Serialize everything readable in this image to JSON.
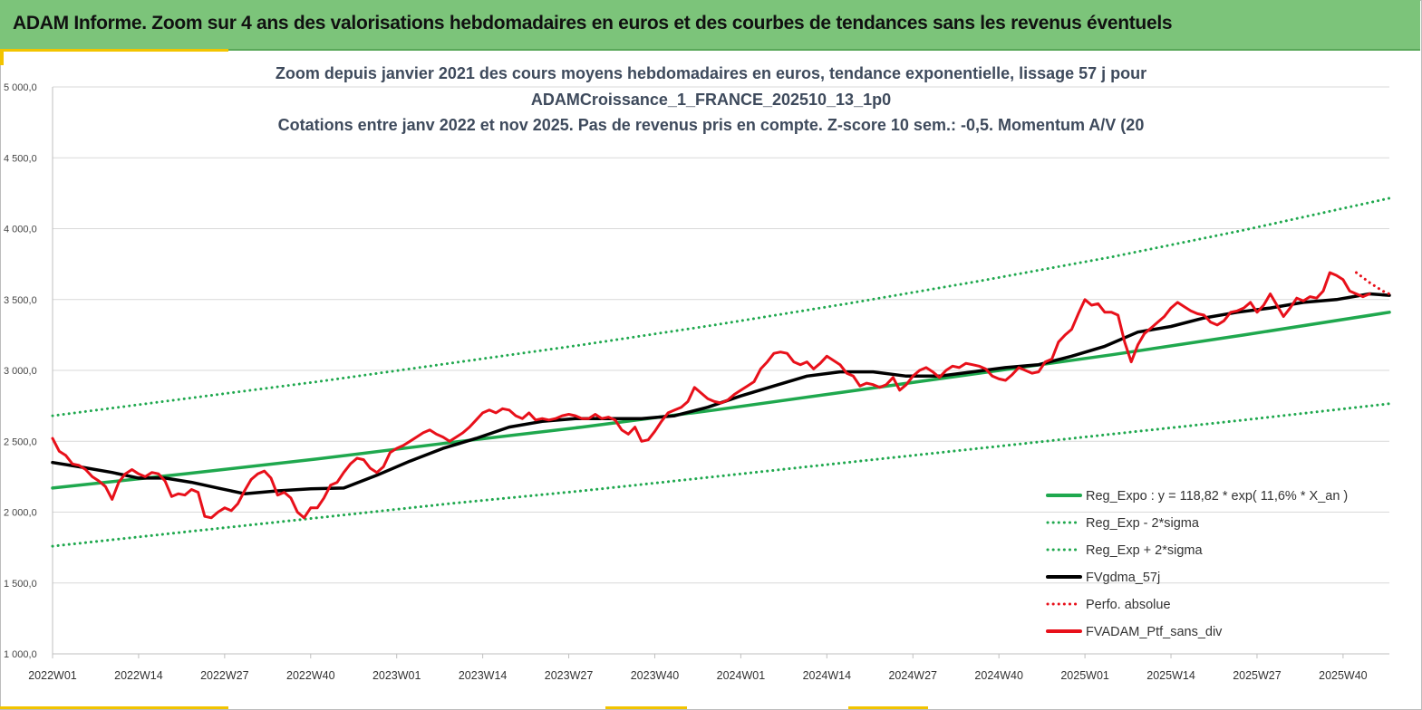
{
  "header": {
    "title": "ADAM Informe. Zoom sur 4 ans des valorisations hebdomadaires en euros et des courbes de tendances sans les revenus éventuels"
  },
  "chart_data": {
    "type": "line",
    "title_lines": [
      "Zoom depuis janvier 2021 des cours moyens hebdomadaires  en euros, tendance exponentielle, lissage 57 j pour",
      "ADAMCroissance_1_FRANCE_202510_13_1p0",
      "Cotations  entre janv 2022 et nov 2025. Pas de revenus pris en compte. Z-score 10 sem.: -0,5. Momentum A/V (20"
    ],
    "ylim": [
      1000,
      5000
    ],
    "yticks": [
      "1 000,0",
      "1 500,0",
      "2 000,0",
      "2 500,0",
      "3 000,0",
      "3 500,0",
      "4 000,0",
      "4 500,0",
      "5 000,0"
    ],
    "ytick_values": [
      1000,
      1500,
      2000,
      2500,
      3000,
      3500,
      4000,
      4500,
      5000
    ],
    "xlim": [
      1,
      203
    ],
    "xticks": [
      "2022W01",
      "2022W14",
      "2022W27",
      "2022W40",
      "2023W01",
      "2023W14",
      "2023W27",
      "2023W40",
      "2024W01",
      "2024W14",
      "2024W27",
      "2024W40",
      "2025W01",
      "2025W14",
      "2025W27",
      "2025W40"
    ],
    "xtick_index": [
      1,
      14,
      27,
      40,
      53,
      66,
      79,
      92,
      105,
      118,
      131,
      144,
      157,
      170,
      183,
      196
    ],
    "grid": "horizontal",
    "legend_position": "bottom-right",
    "colors": {
      "green": "#1fa84e",
      "black": "#000000",
      "red": "#e8101a"
    },
    "series": [
      {
        "name": "Reg_Expo : y = 118,82 * exp( 11,6% *  X_an )",
        "style": "solid",
        "color": "#1fa84e",
        "points": [
          [
            1,
            2170
          ],
          [
            21,
            2270
          ],
          [
            41,
            2375
          ],
          [
            61,
            2490
          ],
          [
            81,
            2600
          ],
          [
            101,
            2720
          ],
          [
            121,
            2850
          ],
          [
            141,
            2980
          ],
          [
            161,
            3110
          ],
          [
            181,
            3250
          ],
          [
            203,
            3410
          ]
        ]
      },
      {
        "name": "Reg_Exp - 2*sigma",
        "style": "dotted",
        "color": "#1fa84e",
        "points": [
          [
            1,
            1760
          ],
          [
            21,
            1860
          ],
          [
            41,
            1960
          ],
          [
            61,
            2060
          ],
          [
            81,
            2150
          ],
          [
            101,
            2250
          ],
          [
            121,
            2350
          ],
          [
            141,
            2450
          ],
          [
            161,
            2550
          ],
          [
            181,
            2650
          ],
          [
            203,
            2765
          ]
        ]
      },
      {
        "name": "Reg_Exp + 2*sigma",
        "style": "dotted",
        "color": "#1fa84e",
        "points": [
          [
            1,
            2680
          ],
          [
            21,
            2800
          ],
          [
            41,
            2920
          ],
          [
            61,
            3050
          ],
          [
            81,
            3180
          ],
          [
            101,
            3320
          ],
          [
            121,
            3470
          ],
          [
            141,
            3630
          ],
          [
            161,
            3800
          ],
          [
            181,
            3990
          ],
          [
            203,
            4215
          ]
        ]
      },
      {
        "name": "FVgdma_57j",
        "style": "solid",
        "color": "#000000",
        "points": [
          [
            1,
            2350
          ],
          [
            5,
            2320
          ],
          [
            10,
            2280
          ],
          [
            14,
            2240
          ],
          [
            18,
            2240
          ],
          [
            22,
            2210
          ],
          [
            26,
            2170
          ],
          [
            30,
            2130
          ],
          [
            35,
            2150
          ],
          [
            40,
            2165
          ],
          [
            45,
            2170
          ],
          [
            50,
            2260
          ],
          [
            55,
            2360
          ],
          [
            60,
            2450
          ],
          [
            65,
            2520
          ],
          [
            70,
            2600
          ],
          [
            75,
            2640
          ],
          [
            80,
            2660
          ],
          [
            85,
            2660
          ],
          [
            90,
            2660
          ],
          [
            95,
            2680
          ],
          [
            100,
            2740
          ],
          [
            105,
            2820
          ],
          [
            110,
            2890
          ],
          [
            115,
            2960
          ],
          [
            120,
            2990
          ],
          [
            125,
            2990
          ],
          [
            130,
            2960
          ],
          [
            135,
            2960
          ],
          [
            140,
            2990
          ],
          [
            145,
            3020
          ],
          [
            150,
            3040
          ],
          [
            155,
            3100
          ],
          [
            160,
            3170
          ],
          [
            165,
            3270
          ],
          [
            170,
            3310
          ],
          [
            175,
            3370
          ],
          [
            180,
            3410
          ],
          [
            185,
            3440
          ],
          [
            190,
            3480
          ],
          [
            195,
            3500
          ],
          [
            200,
            3540
          ],
          [
            203,
            3530
          ]
        ]
      },
      {
        "name": "Perfo. absolue",
        "style": "dotted",
        "color": "#e8101a",
        "points": [
          [
            198,
            3690
          ],
          [
            200,
            3620
          ],
          [
            202,
            3560
          ],
          [
            203,
            3540
          ]
        ]
      },
      {
        "name": "FVADAM_Ptf_sans_div",
        "style": "solid",
        "color": "#e8101a",
        "points": [
          [
            1,
            2520
          ],
          [
            2,
            2430
          ],
          [
            3,
            2400
          ],
          [
            4,
            2340
          ],
          [
            5,
            2330
          ],
          [
            6,
            2300
          ],
          [
            7,
            2250
          ],
          [
            8,
            2220
          ],
          [
            9,
            2180
          ],
          [
            10,
            2090
          ],
          [
            11,
            2210
          ],
          [
            12,
            2270
          ],
          [
            13,
            2300
          ],
          [
            14,
            2270
          ],
          [
            15,
            2250
          ],
          [
            16,
            2280
          ],
          [
            17,
            2270
          ],
          [
            18,
            2220
          ],
          [
            19,
            2110
          ],
          [
            20,
            2130
          ],
          [
            21,
            2120
          ],
          [
            22,
            2160
          ],
          [
            23,
            2140
          ],
          [
            24,
            1970
          ],
          [
            25,
            1960
          ],
          [
            26,
            2000
          ],
          [
            27,
            2030
          ],
          [
            28,
            2010
          ],
          [
            29,
            2060
          ],
          [
            30,
            2150
          ],
          [
            31,
            2230
          ],
          [
            32,
            2270
          ],
          [
            33,
            2290
          ],
          [
            34,
            2240
          ],
          [
            35,
            2120
          ],
          [
            36,
            2140
          ],
          [
            37,
            2100
          ],
          [
            38,
            2000
          ],
          [
            39,
            1960
          ],
          [
            40,
            2030
          ],
          [
            41,
            2030
          ],
          [
            42,
            2100
          ],
          [
            43,
            2190
          ],
          [
            44,
            2210
          ],
          [
            45,
            2280
          ],
          [
            46,
            2340
          ],
          [
            47,
            2380
          ],
          [
            48,
            2370
          ],
          [
            49,
            2310
          ],
          [
            50,
            2280
          ],
          [
            51,
            2320
          ],
          [
            52,
            2420
          ],
          [
            53,
            2450
          ],
          [
            54,
            2470
          ],
          [
            55,
            2500
          ],
          [
            56,
            2530
          ],
          [
            57,
            2560
          ],
          [
            58,
            2580
          ],
          [
            59,
            2550
          ],
          [
            60,
            2530
          ],
          [
            61,
            2500
          ],
          [
            62,
            2530
          ],
          [
            63,
            2560
          ],
          [
            64,
            2600
          ],
          [
            65,
            2650
          ],
          [
            66,
            2700
          ],
          [
            67,
            2720
          ],
          [
            68,
            2700
          ],
          [
            69,
            2730
          ],
          [
            70,
            2720
          ],
          [
            71,
            2680
          ],
          [
            72,
            2660
          ],
          [
            73,
            2700
          ],
          [
            74,
            2650
          ],
          [
            75,
            2660
          ],
          [
            76,
            2650
          ],
          [
            77,
            2660
          ],
          [
            78,
            2680
          ],
          [
            79,
            2690
          ],
          [
            80,
            2680
          ],
          [
            81,
            2660
          ],
          [
            82,
            2660
          ],
          [
            83,
            2690
          ],
          [
            84,
            2660
          ],
          [
            85,
            2670
          ],
          [
            86,
            2650
          ],
          [
            87,
            2580
          ],
          [
            88,
            2550
          ],
          [
            89,
            2600
          ],
          [
            90,
            2500
          ],
          [
            91,
            2510
          ],
          [
            92,
            2570
          ],
          [
            93,
            2640
          ],
          [
            94,
            2700
          ],
          [
            95,
            2720
          ],
          [
            96,
            2740
          ],
          [
            97,
            2780
          ],
          [
            98,
            2880
          ],
          [
            99,
            2840
          ],
          [
            100,
            2800
          ],
          [
            101,
            2780
          ],
          [
            102,
            2770
          ],
          [
            103,
            2790
          ],
          [
            104,
            2830
          ],
          [
            105,
            2860
          ],
          [
            106,
            2890
          ],
          [
            107,
            2920
          ],
          [
            108,
            3010
          ],
          [
            109,
            3060
          ],
          [
            110,
            3120
          ],
          [
            111,
            3130
          ],
          [
            112,
            3120
          ],
          [
            113,
            3060
          ],
          [
            114,
            3040
          ],
          [
            115,
            3060
          ],
          [
            116,
            3010
          ],
          [
            117,
            3050
          ],
          [
            118,
            3100
          ],
          [
            119,
            3070
          ],
          [
            120,
            3040
          ],
          [
            121,
            2980
          ],
          [
            122,
            2960
          ],
          [
            123,
            2890
          ],
          [
            124,
            2910
          ],
          [
            125,
            2900
          ],
          [
            126,
            2880
          ],
          [
            127,
            2900
          ],
          [
            128,
            2950
          ],
          [
            129,
            2860
          ],
          [
            130,
            2900
          ],
          [
            131,
            2960
          ],
          [
            132,
            3000
          ],
          [
            133,
            3020
          ],
          [
            134,
            2990
          ],
          [
            135,
            2950
          ],
          [
            136,
            3000
          ],
          [
            137,
            3030
          ],
          [
            138,
            3020
          ],
          [
            139,
            3050
          ],
          [
            140,
            3040
          ],
          [
            141,
            3030
          ],
          [
            142,
            3010
          ],
          [
            143,
            2960
          ],
          [
            144,
            2940
          ],
          [
            145,
            2930
          ],
          [
            146,
            2970
          ],
          [
            147,
            3020
          ],
          [
            148,
            3000
          ],
          [
            149,
            2980
          ],
          [
            150,
            2990
          ],
          [
            151,
            3060
          ],
          [
            152,
            3080
          ],
          [
            153,
            3200
          ],
          [
            154,
            3250
          ],
          [
            155,
            3290
          ],
          [
            156,
            3400
          ],
          [
            157,
            3500
          ],
          [
            158,
            3460
          ],
          [
            159,
            3470
          ],
          [
            160,
            3410
          ],
          [
            161,
            3410
          ],
          [
            162,
            3390
          ],
          [
            163,
            3200
          ],
          [
            164,
            3060
          ],
          [
            165,
            3180
          ],
          [
            166,
            3260
          ],
          [
            167,
            3300
          ],
          [
            168,
            3340
          ],
          [
            169,
            3380
          ],
          [
            170,
            3440
          ],
          [
            171,
            3480
          ],
          [
            172,
            3450
          ],
          [
            173,
            3420
          ],
          [
            174,
            3400
          ],
          [
            175,
            3390
          ],
          [
            176,
            3340
          ],
          [
            177,
            3320
          ],
          [
            178,
            3350
          ],
          [
            179,
            3410
          ],
          [
            180,
            3420
          ],
          [
            181,
            3440
          ],
          [
            182,
            3480
          ],
          [
            183,
            3410
          ],
          [
            184,
            3460
          ],
          [
            185,
            3540
          ],
          [
            186,
            3460
          ],
          [
            187,
            3380
          ],
          [
            188,
            3440
          ],
          [
            189,
            3510
          ],
          [
            190,
            3490
          ],
          [
            191,
            3520
          ],
          [
            192,
            3510
          ],
          [
            193,
            3560
          ],
          [
            194,
            3690
          ],
          [
            195,
            3670
          ],
          [
            196,
            3640
          ],
          [
            197,
            3560
          ],
          [
            198,
            3540
          ],
          [
            199,
            3520
          ],
          [
            200,
            3540
          ]
        ]
      }
    ]
  }
}
